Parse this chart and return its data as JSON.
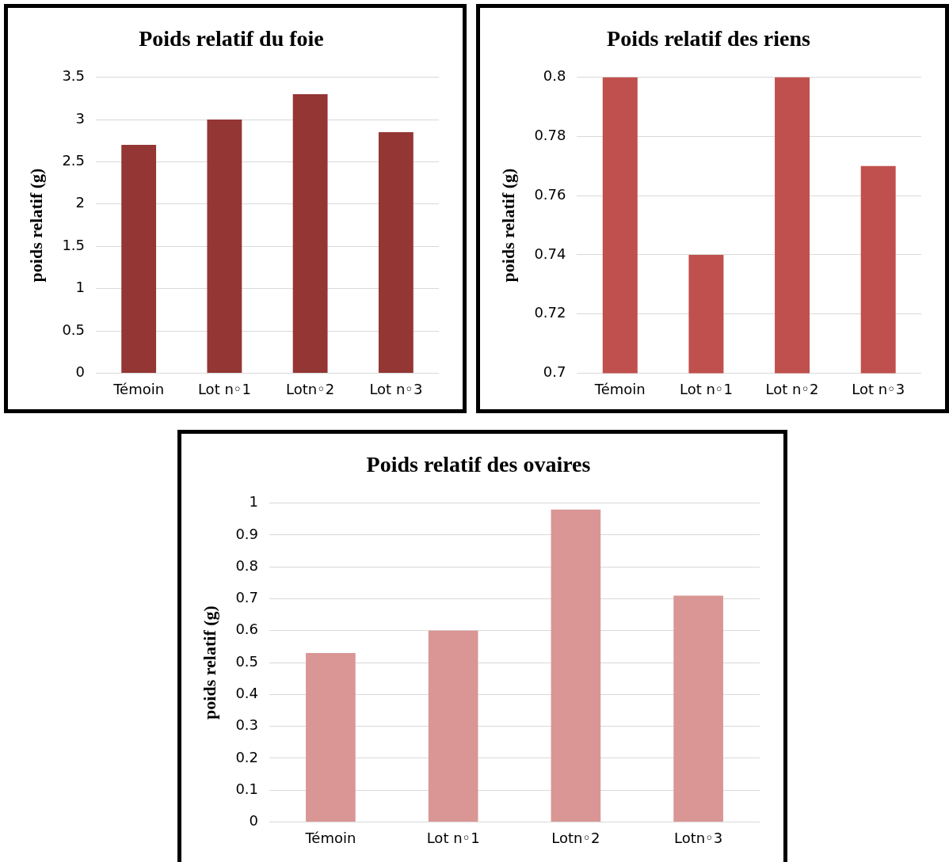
{
  "chart_data": [
    {
      "type": "bar",
      "title": "Poids relatif du foie",
      "ylabel": "poids relatif (g)",
      "categories": [
        "Témoin",
        "Lot n◦1",
        "Lotn◦2",
        "Lot n◦3"
      ],
      "values": [
        2.7,
        3.0,
        3.3,
        2.85
      ],
      "color": "#943634",
      "ylim": [
        0,
        3.5
      ],
      "yticks": [
        0,
        0.5,
        1,
        1.5,
        2,
        2.5,
        3,
        3.5
      ],
      "grid": "y"
    },
    {
      "type": "bar",
      "title": "Poids relatif des riens",
      "ylabel": "poids relatif (g)",
      "categories": [
        "Témoin",
        "Lot n◦1",
        "Lot n◦2",
        "Lot n◦3"
      ],
      "values": [
        0.8,
        0.74,
        0.8,
        0.77
      ],
      "color": "#c0504d",
      "ylim": [
        0.7,
        0.8
      ],
      "yticks": [
        0.7,
        0.72,
        0.74,
        0.76,
        0.78,
        0.8
      ],
      "grid": "y"
    },
    {
      "type": "bar",
      "title": "Poids relatif des ovaires",
      "ylabel": "poids relatif (g)",
      "categories": [
        "Témoin",
        "Lot n◦1",
        "Lotn◦2",
        "Lotn◦3"
      ],
      "values": [
        0.53,
        0.6,
        0.98,
        0.71
      ],
      "color": "#d99694",
      "ylim": [
        0,
        1
      ],
      "yticks": [
        0,
        0.1,
        0.2,
        0.3,
        0.4,
        0.5,
        0.6,
        0.7,
        0.8,
        0.9,
        1
      ],
      "grid": "y"
    }
  ]
}
